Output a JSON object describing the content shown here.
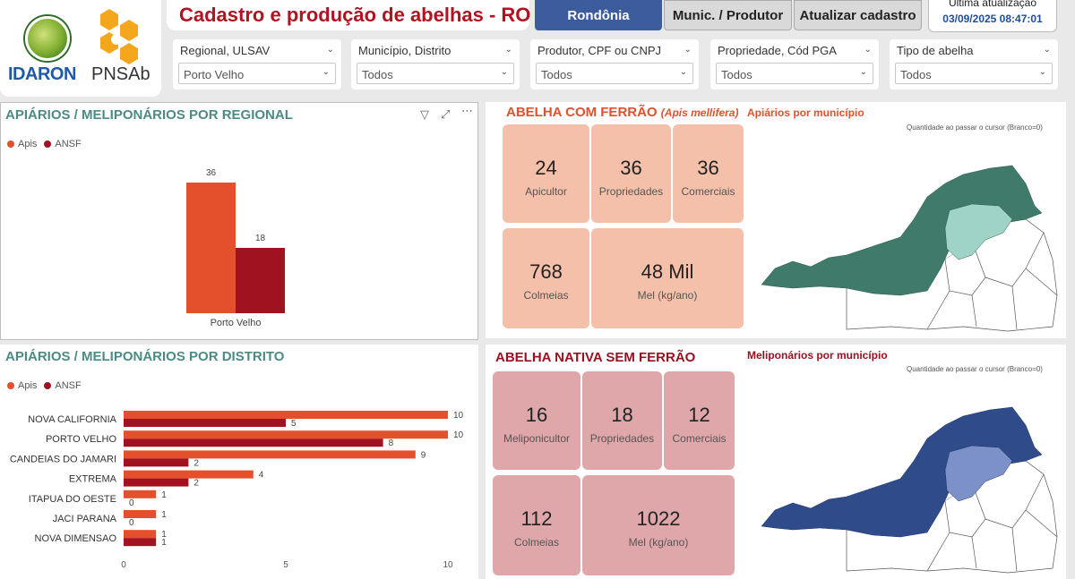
{
  "header": {
    "brand_idaron": "IDARON",
    "brand_pnsab": "PNSAb",
    "title": "Cadastro e produção de abelhas - RO",
    "tabs": [
      "Rondônia",
      "Munic. / Produtor",
      "Atualizar cadastro"
    ],
    "last_update_label": "Última atualização",
    "last_update_value": "03/09/2025 08:47:01"
  },
  "filters": [
    {
      "label": "Regional, ULSAV",
      "value": "Porto Velho"
    },
    {
      "label": "Município, Distrito",
      "value": "Todos"
    },
    {
      "label": "Produtor, CPF ou CNPJ",
      "value": "Todos"
    },
    {
      "label": "Propriedade, Cód PGA",
      "value": "Todos"
    },
    {
      "label": "Tipo de abelha",
      "value": "Todos"
    }
  ],
  "regional_panel": {
    "title": "APIÁRIOS / MELIPONÁRIOS POR REGIONAL",
    "legend": [
      "Apis",
      "ANSF"
    ]
  },
  "district_panel": {
    "title": "APIÁRIOS / MELIPONÁRIOS POR DISTRITO",
    "legend": [
      "Apis",
      "ANSF"
    ]
  },
  "ferrao": {
    "title": "ABELHA COM FERRÃO",
    "subtitle": "(Apis mellifera)",
    "cards": [
      {
        "num": "24",
        "label": "Apicultor"
      },
      {
        "num": "36",
        "label": "Propriedades"
      },
      {
        "num": "36",
        "label": "Comerciais"
      },
      {
        "num": "768",
        "label": "Colmeias"
      },
      {
        "num": "48 Mil",
        "label": "Mel (kg/ano)"
      }
    ],
    "map_title": "Apiários por município",
    "map_note": "Quantidade ao passar o cursor (Branco=0)"
  },
  "nativa": {
    "title": "ABELHA NATIVA SEM FERRÃO",
    "cards": [
      {
        "num": "16",
        "label": "Meliponicultor"
      },
      {
        "num": "18",
        "label": "Propriedades"
      },
      {
        "num": "12",
        "label": "Comerciais"
      },
      {
        "num": "112",
        "label": "Colmeias"
      },
      {
        "num": "1022",
        "label": "Mel (kg/ano)"
      }
    ],
    "map_title": "Meliponários por município",
    "map_note": "Quantidade ao passar o cursor (Branco=0)"
  },
  "colors": {
    "apis": "#e4502b",
    "ansf": "#a0121f",
    "map_green": "#3f7a6a",
    "map_green_light": "#9fd3c7",
    "map_blue": "#2f4b8a",
    "map_blue_light": "#7d91c9"
  },
  "chart_data": [
    {
      "type": "bar",
      "title": "APIÁRIOS / MELIPONÁRIOS POR REGIONAL",
      "categories": [
        "Porto Velho"
      ],
      "series": [
        {
          "name": "Apis",
          "values": [
            36
          ]
        },
        {
          "name": "ANSF",
          "values": [
            18
          ]
        }
      ],
      "ylim": [
        0,
        36
      ],
      "legend": "top-left"
    },
    {
      "type": "bar",
      "orientation": "horizontal",
      "title": "APIÁRIOS / MELIPONÁRIOS POR DISTRITO",
      "categories": [
        "NOVA CALIFORNIA",
        "PORTO VELHO",
        "CANDEIAS DO JAMARI",
        "EXTREMA",
        "ITAPUA DO OESTE",
        "JACI PARANA",
        "NOVA DIMENSAO"
      ],
      "series": [
        {
          "name": "Apis",
          "values": [
            10,
            10,
            9,
            4,
            1,
            1,
            1
          ]
        },
        {
          "name": "ANSF",
          "values": [
            5,
            8,
            2,
            2,
            0,
            0,
            1
          ]
        }
      ],
      "xlim": [
        0,
        10
      ],
      "xticks": [
        0,
        5,
        10
      ],
      "legend": "top-left"
    }
  ]
}
